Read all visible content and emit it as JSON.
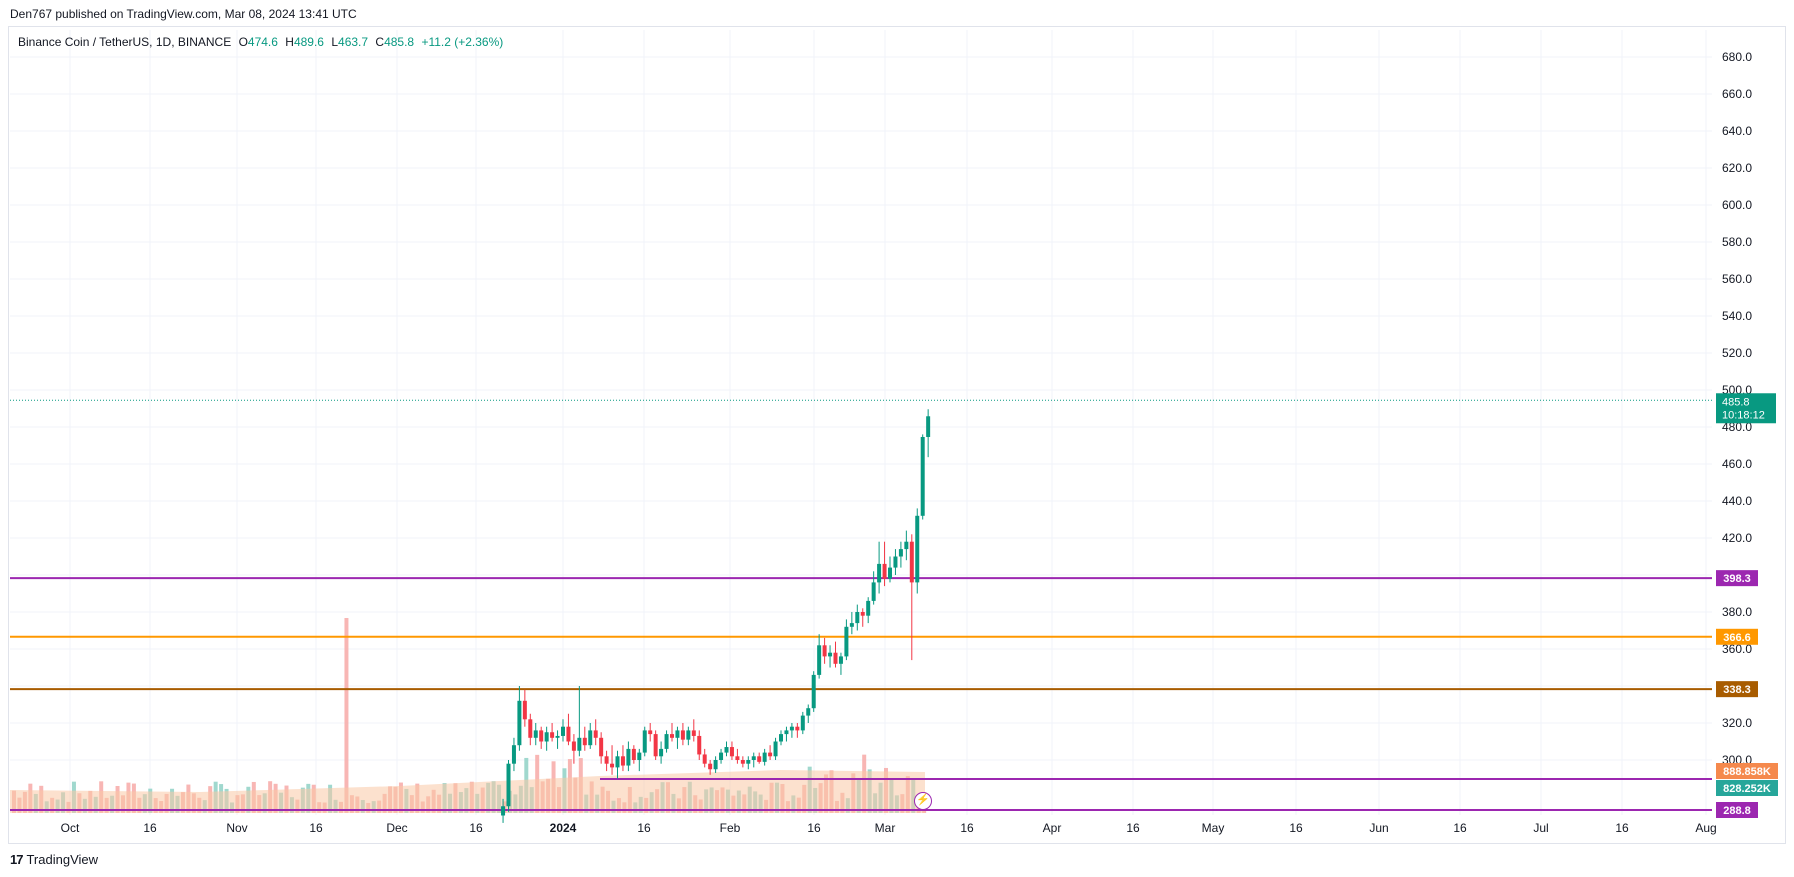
{
  "header": {
    "published": "Den767 published on TradingView.com, Mar 08, 2024 13:41 UTC"
  },
  "legend": {
    "symbol": "Binance Coin / TetherUS, 1D, BINANCE",
    "o_label": "O",
    "o_value": "474.6",
    "h_label": "H",
    "h_value": "489.6",
    "l_label": "L",
    "l_value": "463.7",
    "c_label": "C",
    "c_value": "485.8",
    "change": "+11.2 (+2.36%)"
  },
  "footer": {
    "logo": "17",
    "brand": "TradingView"
  },
  "colors": {
    "up": "#089981",
    "down": "#f23645",
    "vol_up": "#8fd1c6",
    "vol_down": "#f7a9a7",
    "level_purple": "#9c27b0",
    "level_orange": "#ff9800",
    "level_brown": "#a85c00",
    "vol_ma_fill": "#f9c9a6",
    "vol_ma_label": "#f5894d"
  },
  "chart_data": {
    "type": "candlestick",
    "symbol": "BNBUSDT",
    "timeframe": "1D",
    "ylim": [
      285,
      690
    ],
    "y_ticks": [
      "300.0",
      "320.0",
      "340.0",
      "360.0",
      "380.0",
      "400.0",
      "420.0",
      "440.0",
      "460.0",
      "480.0",
      "500.0",
      "520.0",
      "540.0",
      "560.0",
      "580.0",
      "600.0",
      "620.0",
      "640.0",
      "660.0",
      "680.0"
    ],
    "x_ticks": [
      "Oct",
      "16",
      "Nov",
      "16",
      "Dec",
      "16",
      "2024",
      "16",
      "Feb",
      "16",
      "Mar",
      "16",
      "Apr",
      "16",
      "May",
      "16",
      "Jun",
      "16",
      "Jul",
      "16",
      "Aug"
    ],
    "price_levels": [
      {
        "value": 398.3,
        "label": "398.3",
        "color": "#9c27b0"
      },
      {
        "value": 366.6,
        "label": "366.6",
        "color": "#ff9800"
      },
      {
        "value": 338.3,
        "label": "338.3",
        "color": "#a85c00"
      },
      {
        "value": 288.8,
        "label": "288.8",
        "color": "#9c27b0"
      }
    ],
    "current_price": {
      "value": 485.8,
      "label": "485.8",
      "countdown": "10:18:12"
    },
    "volume_labels": [
      {
        "label": "888.858K",
        "color": "#f5894d"
      },
      {
        "label": "828.252K",
        "color": "#26a69a"
      }
    ],
    "candles": [
      {
        "date": "2023-12-21",
        "o": 270,
        "h": 279,
        "l": 266,
        "c": 275
      },
      {
        "date": "2023-12-22",
        "o": 275,
        "h": 300,
        "l": 272,
        "c": 298
      },
      {
        "date": "2023-12-23",
        "o": 298,
        "h": 312,
        "l": 294,
        "c": 308
      },
      {
        "date": "2023-12-24",
        "o": 308,
        "h": 340,
        "l": 305,
        "c": 332
      },
      {
        "date": "2023-12-25",
        "o": 332,
        "h": 338,
        "l": 318,
        "c": 322
      },
      {
        "date": "2023-12-26",
        "o": 322,
        "h": 325,
        "l": 308,
        "c": 312
      },
      {
        "date": "2023-12-27",
        "o": 312,
        "h": 320,
        "l": 308,
        "c": 316
      },
      {
        "date": "2023-12-28",
        "o": 316,
        "h": 318,
        "l": 306,
        "c": 310
      },
      {
        "date": "2023-12-29",
        "o": 310,
        "h": 318,
        "l": 305,
        "c": 315
      },
      {
        "date": "2023-12-30",
        "o": 315,
        "h": 320,
        "l": 310,
        "c": 312
      },
      {
        "date": "2023-12-31",
        "o": 312,
        "h": 316,
        "l": 306,
        "c": 313
      },
      {
        "date": "2024-01-01",
        "o": 313,
        "h": 322,
        "l": 310,
        "c": 318
      },
      {
        "date": "2024-01-02",
        "o": 318,
        "h": 325,
        "l": 308,
        "c": 310
      },
      {
        "date": "2024-01-03",
        "o": 310,
        "h": 314,
        "l": 298,
        "c": 305
      },
      {
        "date": "2024-01-04",
        "o": 305,
        "h": 340,
        "l": 302,
        "c": 312
      },
      {
        "date": "2024-01-05",
        "o": 312,
        "h": 318,
        "l": 305,
        "c": 308
      },
      {
        "date": "2024-01-06",
        "o": 308,
        "h": 320,
        "l": 306,
        "c": 316
      },
      {
        "date": "2024-01-07",
        "o": 316,
        "h": 322,
        "l": 308,
        "c": 312
      },
      {
        "date": "2024-01-08",
        "o": 312,
        "h": 315,
        "l": 298,
        "c": 302
      },
      {
        "date": "2024-01-09",
        "o": 302,
        "h": 305,
        "l": 294,
        "c": 298
      },
      {
        "date": "2024-01-10",
        "o": 298,
        "h": 308,
        "l": 292,
        "c": 296
      },
      {
        "date": "2024-01-11",
        "o": 296,
        "h": 305,
        "l": 290,
        "c": 302
      },
      {
        "date": "2024-01-12",
        "o": 302,
        "h": 308,
        "l": 294,
        "c": 297
      },
      {
        "date": "2024-01-13",
        "o": 297,
        "h": 310,
        "l": 294,
        "c": 306
      },
      {
        "date": "2024-01-14",
        "o": 306,
        "h": 308,
        "l": 298,
        "c": 300
      },
      {
        "date": "2024-01-15",
        "o": 300,
        "h": 306,
        "l": 294,
        "c": 304
      },
      {
        "date": "2024-01-16",
        "o": 304,
        "h": 318,
        "l": 302,
        "c": 316
      },
      {
        "date": "2024-01-17",
        "o": 316,
        "h": 320,
        "l": 310,
        "c": 314
      },
      {
        "date": "2024-01-18",
        "o": 314,
        "h": 316,
        "l": 300,
        "c": 302
      },
      {
        "date": "2024-01-19",
        "o": 302,
        "h": 310,
        "l": 298,
        "c": 306
      },
      {
        "date": "2024-01-20",
        "o": 306,
        "h": 316,
        "l": 304,
        "c": 314
      },
      {
        "date": "2024-01-21",
        "o": 314,
        "h": 320,
        "l": 310,
        "c": 312
      },
      {
        "date": "2024-01-22",
        "o": 312,
        "h": 318,
        "l": 306,
        "c": 316
      },
      {
        "date": "2024-01-23",
        "o": 316,
        "h": 320,
        "l": 308,
        "c": 311
      },
      {
        "date": "2024-01-24",
        "o": 311,
        "h": 318,
        "l": 308,
        "c": 316
      },
      {
        "date": "2024-01-25",
        "o": 316,
        "h": 322,
        "l": 310,
        "c": 313
      },
      {
        "date": "2024-01-26",
        "o": 313,
        "h": 316,
        "l": 300,
        "c": 303
      },
      {
        "date": "2024-01-27",
        "o": 303,
        "h": 306,
        "l": 296,
        "c": 298
      },
      {
        "date": "2024-01-28",
        "o": 298,
        "h": 300,
        "l": 292,
        "c": 295
      },
      {
        "date": "2024-01-29",
        "o": 295,
        "h": 302,
        "l": 293,
        "c": 300
      },
      {
        "date": "2024-01-30",
        "o": 300,
        "h": 306,
        "l": 298,
        "c": 304
      },
      {
        "date": "2024-01-31",
        "o": 304,
        "h": 310,
        "l": 302,
        "c": 307
      },
      {
        "date": "2024-02-01",
        "o": 307,
        "h": 310,
        "l": 300,
        "c": 302
      },
      {
        "date": "2024-02-02",
        "o": 302,
        "h": 306,
        "l": 298,
        "c": 300
      },
      {
        "date": "2024-02-03",
        "o": 300,
        "h": 302,
        "l": 296,
        "c": 298
      },
      {
        "date": "2024-02-04",
        "o": 298,
        "h": 302,
        "l": 295,
        "c": 300
      },
      {
        "date": "2024-02-05",
        "o": 300,
        "h": 304,
        "l": 296,
        "c": 302
      },
      {
        "date": "2024-02-06",
        "o": 302,
        "h": 304,
        "l": 298,
        "c": 299
      },
      {
        "date": "2024-02-07",
        "o": 299,
        "h": 306,
        "l": 297,
        "c": 304
      },
      {
        "date": "2024-02-08",
        "o": 304,
        "h": 308,
        "l": 300,
        "c": 302
      },
      {
        "date": "2024-02-09",
        "o": 302,
        "h": 312,
        "l": 300,
        "c": 310
      },
      {
        "date": "2024-02-10",
        "o": 310,
        "h": 316,
        "l": 308,
        "c": 314
      },
      {
        "date": "2024-02-11",
        "o": 314,
        "h": 318,
        "l": 310,
        "c": 316
      },
      {
        "date": "2024-02-12",
        "o": 316,
        "h": 320,
        "l": 312,
        "c": 318
      },
      {
        "date": "2024-02-13",
        "o": 318,
        "h": 320,
        "l": 312,
        "c": 316
      },
      {
        "date": "2024-02-14",
        "o": 316,
        "h": 326,
        "l": 314,
        "c": 324
      },
      {
        "date": "2024-02-15",
        "o": 324,
        "h": 330,
        "l": 320,
        "c": 328
      },
      {
        "date": "2024-02-16",
        "o": 328,
        "h": 348,
        "l": 326,
        "c": 346
      },
      {
        "date": "2024-02-17",
        "o": 346,
        "h": 368,
        "l": 344,
        "c": 362
      },
      {
        "date": "2024-02-18",
        "o": 362,
        "h": 366,
        "l": 352,
        "c": 356
      },
      {
        "date": "2024-02-19",
        "o": 356,
        "h": 362,
        "l": 350,
        "c": 358
      },
      {
        "date": "2024-02-20",
        "o": 358,
        "h": 364,
        "l": 350,
        "c": 352
      },
      {
        "date": "2024-02-21",
        "o": 352,
        "h": 358,
        "l": 346,
        "c": 356
      },
      {
        "date": "2024-02-22",
        "o": 356,
        "h": 376,
        "l": 354,
        "c": 372
      },
      {
        "date": "2024-02-23",
        "o": 372,
        "h": 380,
        "l": 368,
        "c": 374
      },
      {
        "date": "2024-02-24",
        "o": 374,
        "h": 384,
        "l": 370,
        "c": 380
      },
      {
        "date": "2024-02-25",
        "o": 380,
        "h": 382,
        "l": 372,
        "c": 378
      },
      {
        "date": "2024-02-26",
        "o": 378,
        "h": 388,
        "l": 374,
        "c": 386
      },
      {
        "date": "2024-02-27",
        "o": 386,
        "h": 402,
        "l": 384,
        "c": 396
      },
      {
        "date": "2024-02-28",
        "o": 396,
        "h": 418,
        "l": 390,
        "c": 406
      },
      {
        "date": "2024-02-29",
        "o": 406,
        "h": 418,
        "l": 394,
        "c": 398
      },
      {
        "date": "2024-03-01",
        "o": 398,
        "h": 410,
        "l": 396,
        "c": 404
      },
      {
        "date": "2024-03-02",
        "o": 404,
        "h": 414,
        "l": 400,
        "c": 410
      },
      {
        "date": "2024-03-03",
        "o": 410,
        "h": 418,
        "l": 404,
        "c": 414
      },
      {
        "date": "2024-03-04",
        "o": 414,
        "h": 424,
        "l": 408,
        "c": 418
      },
      {
        "date": "2024-03-05",
        "o": 418,
        "h": 422,
        "l": 354,
        "c": 396
      },
      {
        "date": "2024-03-06",
        "o": 396,
        "h": 436,
        "l": 390,
        "c": 432
      },
      {
        "date": "2024-03-07",
        "o": 432,
        "h": 476,
        "l": 430,
        "c": 474.6
      },
      {
        "date": "2024-03-08",
        "o": 474.6,
        "h": 489.6,
        "l": 463.7,
        "c": 485.8
      }
    ]
  }
}
